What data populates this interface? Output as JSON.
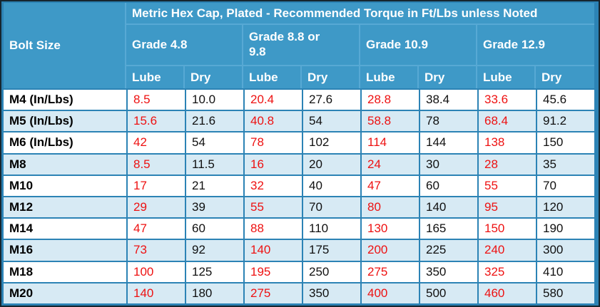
{
  "chart_data": {
    "type": "table",
    "title": "Metric Hex Cap, Plated - Recommended Torque in Ft/Lbs unless Noted",
    "corner_header": "Bolt Size",
    "column_groups": [
      {
        "label": "Grade 4.8",
        "columns": [
          "Lube",
          "Dry"
        ]
      },
      {
        "label": "Grade 8.8 or 9.8",
        "columns": [
          "Lube",
          "Dry"
        ]
      },
      {
        "label": "Grade 10.9",
        "columns": [
          "Lube",
          "Dry"
        ]
      },
      {
        "label": "Grade 12.9",
        "columns": [
          "Lube",
          "Dry"
        ]
      }
    ],
    "rows": [
      {
        "bolt_size": "M4 (In/Lbs)",
        "values": [
          "8.5",
          "10.0",
          "20.4",
          "27.6",
          "28.8",
          "38.4",
          "33.6",
          "45.6"
        ]
      },
      {
        "bolt_size": "M5 (In/Lbs)",
        "values": [
          "15.6",
          "21.6",
          "40.8",
          "54",
          "58.8",
          "78",
          "68.4",
          "91.2"
        ]
      },
      {
        "bolt_size": "M6 (In/Lbs)",
        "values": [
          "42",
          "54",
          "78",
          "102",
          "114",
          "144",
          "138",
          "150"
        ]
      },
      {
        "bolt_size": "M8",
        "values": [
          "8.5",
          "11.5",
          "16",
          "20",
          "24",
          "30",
          "28",
          "35"
        ]
      },
      {
        "bolt_size": "M10",
        "values": [
          "17",
          "21",
          "32",
          "40",
          "47",
          "60",
          "55",
          "70"
        ]
      },
      {
        "bolt_size": "M12",
        "values": [
          "29",
          "39",
          "55",
          "70",
          "80",
          "140",
          "95",
          "120"
        ]
      },
      {
        "bolt_size": "M14",
        "values": [
          "47",
          "60",
          "88",
          "110",
          "130",
          "165",
          "150",
          "190"
        ]
      },
      {
        "bolt_size": "M16",
        "values": [
          "73",
          "92",
          "140",
          "175",
          "200",
          "225",
          "240",
          "300"
        ]
      },
      {
        "bolt_size": "M18",
        "values": [
          "100",
          "125",
          "195",
          "250",
          "275",
          "350",
          "325",
          "410"
        ]
      },
      {
        "bolt_size": "M20",
        "values": [
          "140",
          "180",
          "275",
          "350",
          "400",
          "500",
          "460",
          "580"
        ]
      }
    ],
    "layout_hints": {
      "lube_columns_text_color": "red",
      "dry_columns_text_color": "black",
      "row_striping": "alternating white / light blue starting with white"
    }
  },
  "colors": {
    "header_background": "#3E99C7",
    "header_text": "#FFFFFF",
    "header_separator": "#57A9D4",
    "grid_border": "#2C83B5",
    "stripe_row": "#D7EAF4",
    "outer_outline": "#16262F",
    "lube_value_text": "#EE1111",
    "dry_value_text": "#101010"
  }
}
